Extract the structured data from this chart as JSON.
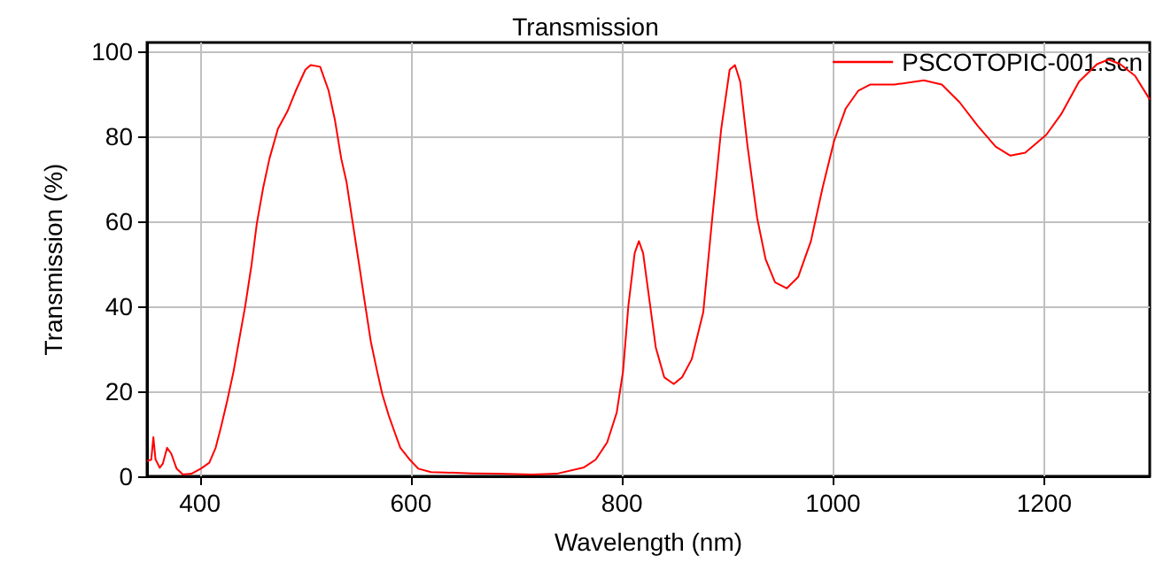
{
  "chart_data": {
    "type": "line",
    "title": "Transmission",
    "xlabel": "Wavelength (nm)",
    "ylabel": "Transmission (%)",
    "xlim": [
      350,
      1300
    ],
    "xticks": [
      400,
      600,
      800,
      1000,
      1200
    ],
    "ylim": [
      0,
      102
    ],
    "yticks": [
      0,
      20,
      40,
      60,
      80,
      100
    ],
    "grid": true,
    "legend": "top right",
    "marker": "none",
    "line_style": "solid",
    "series": [
      {
        "name": "PSCOTOPIC-001.scn",
        "color": "#ff0000",
        "x": [
          350,
          354,
          356,
          358,
          362,
          365,
          369,
          373,
          378,
          384,
          392,
          401,
          409,
          415,
          420,
          426,
          432,
          437,
          443,
          449,
          454,
          460,
          466,
          474,
          483,
          491,
          500,
          505,
          514,
          522,
          528,
          534,
          539,
          545,
          551,
          556,
          562,
          568,
          573,
          579,
          585,
          590,
          599,
          607,
          619,
          658,
          681,
          715,
          738,
          764,
          775,
          786,
          795,
          801,
          806,
          812,
          816,
          820,
          826,
          832,
          840,
          849,
          857,
          866,
          877,
          885,
          894,
          902,
          907,
          912,
          919,
          928,
          936,
          945,
          956,
          967,
          979,
          990,
          1001,
          1012,
          1024,
          1035,
          1058,
          1086,
          1103,
          1120,
          1137,
          1154,
          1168,
          1182,
          1202,
          1216,
          1233,
          1250,
          1261,
          1272,
          1286,
          1300
        ],
        "values": [
          3.6,
          3.9,
          9.2,
          4,
          2,
          3,
          6.7,
          5.3,
          1.8,
          0.4,
          0.6,
          1.8,
          3.2,
          6.7,
          11.5,
          17.8,
          24.7,
          31.7,
          40,
          49.7,
          59.4,
          67.8,
          74.7,
          81.7,
          85.8,
          90.7,
          95.6,
          96.7,
          96.3,
          90.7,
          83.8,
          74.7,
          69.2,
          59.4,
          49.7,
          41.4,
          31.7,
          24.7,
          19.2,
          14.3,
          10.1,
          6.7,
          3.9,
          1.8,
          1,
          0.7,
          0.6,
          0.4,
          0.6,
          2.1,
          3.9,
          8,
          15,
          24.7,
          40,
          52.5,
          55.3,
          52.5,
          41.4,
          30.3,
          23.3,
          21.7,
          23.3,
          27.5,
          38.6,
          59.4,
          81.7,
          95.6,
          96.7,
          92.8,
          77.5,
          60.8,
          51.1,
          45.6,
          44.2,
          46.9,
          55.3,
          67.8,
          78.9,
          86.5,
          90.7,
          92.1,
          92.1,
          93.1,
          92.1,
          87.9,
          82.4,
          77.5,
          75.4,
          76.1,
          80.3,
          85.1,
          92.8,
          96.9,
          98,
          96.9,
          94.2,
          88.6
        ]
      }
    ]
  }
}
